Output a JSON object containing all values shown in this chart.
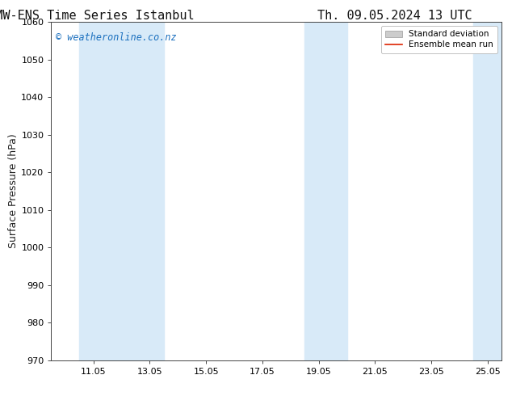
{
  "title_left": "ECMW-ENS Time Series Istanbul",
  "title_right": "Th. 09.05.2024 13 UTC",
  "ylabel": "Surface Pressure (hPa)",
  "ylim": [
    970,
    1060
  ],
  "yticks": [
    970,
    980,
    990,
    1000,
    1010,
    1020,
    1030,
    1040,
    1050,
    1060
  ],
  "xlim_start": 9.5,
  "xlim_end": 25.5,
  "xtick_labels": [
    "11.05",
    "13.05",
    "15.05",
    "17.05",
    "19.05",
    "21.05",
    "23.05",
    "25.05"
  ],
  "xtick_positions": [
    11.0,
    13.0,
    15.0,
    17.0,
    19.0,
    21.0,
    23.0,
    25.0
  ],
  "shaded_bands": [
    {
      "x_start": 10.5,
      "x_end": 13.5,
      "color": "#d8eaf8"
    },
    {
      "x_start": 18.5,
      "x_end": 20.0,
      "color": "#d8eaf8"
    },
    {
      "x_start": 24.5,
      "x_end": 25.5,
      "color": "#d8eaf8"
    }
  ],
  "watermark": "© weatheronline.co.nz",
  "watermark_color": "#1a6fbe",
  "background_color": "#ffffff",
  "plot_bg_color": "#ffffff",
  "legend_std_color": "#bbbbbb",
  "legend_mean_color": "#dd2200",
  "title_fontsize": 11,
  "axis_label_fontsize": 9,
  "tick_fontsize": 8,
  "watermark_fontsize": 8.5,
  "legend_fontsize": 7.5
}
